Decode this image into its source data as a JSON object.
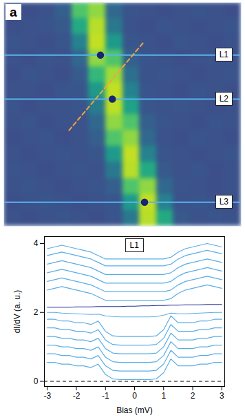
{
  "chart_data": [
    {
      "type": "heatmap",
      "title": "a",
      "xlim": [
        0,
        14
      ],
      "ylim": [
        0,
        14
      ],
      "tick_labels": false,
      "color": "viridis",
      "zlim": [
        -0.15,
        1.05
      ],
      "cells": [
        [
          0.15,
          0.14,
          0.15,
          0.21,
          0.72,
          0.85,
          0.25,
          0.16,
          0.15,
          0.14,
          0.15,
          0.16,
          0.15,
          0.14
        ],
        [
          0.14,
          0.15,
          0.16,
          0.18,
          0.58,
          0.92,
          0.33,
          0.15,
          0.14,
          0.16,
          0.15,
          0.14,
          0.15,
          0.16
        ],
        [
          0.16,
          0.15,
          0.14,
          0.16,
          0.38,
          0.94,
          0.5,
          0.17,
          0.15,
          0.14,
          0.16,
          0.15,
          0.14,
          0.15
        ],
        [
          0.15,
          0.14,
          0.16,
          0.15,
          0.25,
          0.85,
          0.72,
          0.21,
          0.16,
          0.15,
          0.14,
          0.15,
          0.16,
          0.15
        ],
        [
          0.14,
          0.16,
          0.15,
          0.14,
          0.19,
          0.65,
          0.88,
          0.28,
          0.15,
          0.16,
          0.15,
          0.14,
          0.15,
          0.16
        ],
        [
          0.15,
          0.15,
          0.14,
          0.16,
          0.17,
          0.5,
          0.94,
          0.38,
          0.16,
          0.15,
          0.14,
          0.16,
          0.15,
          0.14
        ],
        [
          0.16,
          0.14,
          0.15,
          0.15,
          0.16,
          0.35,
          0.93,
          0.54,
          0.17,
          0.15,
          0.16,
          0.15,
          0.14,
          0.15
        ],
        [
          0.15,
          0.16,
          0.14,
          0.15,
          0.15,
          0.25,
          0.85,
          0.72,
          0.21,
          0.16,
          0.15,
          0.14,
          0.16,
          0.15
        ],
        [
          0.14,
          0.15,
          0.16,
          0.14,
          0.15,
          0.21,
          0.72,
          0.85,
          0.25,
          0.15,
          0.14,
          0.16,
          0.15,
          0.14
        ],
        [
          0.15,
          0.14,
          0.15,
          0.16,
          0.15,
          0.17,
          0.5,
          0.94,
          0.38,
          0.16,
          0.15,
          0.14,
          0.15,
          0.16
        ],
        [
          0.16,
          0.15,
          0.14,
          0.15,
          0.16,
          0.15,
          0.33,
          0.92,
          0.58,
          0.18,
          0.15,
          0.16,
          0.14,
          0.15
        ],
        [
          0.15,
          0.16,
          0.15,
          0.14,
          0.15,
          0.16,
          0.21,
          0.72,
          0.85,
          0.25,
          0.16,
          0.15,
          0.14,
          0.15
        ],
        [
          0.14,
          0.15,
          0.16,
          0.15,
          0.14,
          0.15,
          0.17,
          0.5,
          0.94,
          0.38,
          0.15,
          0.16,
          0.15,
          0.14
        ],
        [
          0.15,
          0.14,
          0.15,
          0.16,
          0.15,
          0.14,
          0.16,
          0.33,
          0.92,
          0.58,
          0.18,
          0.15,
          0.16,
          0.15
        ]
      ],
      "lines": [
        {
          "label": "L1",
          "y": 3.3,
          "dot_x": 5.7
        },
        {
          "label": "L2",
          "y": 6.05,
          "dot_x": 6.4
        },
        {
          "label": "L3",
          "y": 12.5,
          "dot_x": 8.3
        }
      ],
      "dashed_line": {
        "x": [
          8.2,
          3.85
        ],
        "y": [
          2.55,
          8.0
        ]
      }
    },
    {
      "type": "line",
      "title": "L1",
      "xlabel": "Bias (mV)",
      "ylabel": "dI/dV (a. u.)",
      "x": [
        -3,
        -2.75,
        -2.5,
        -2.25,
        -2,
        -1.75,
        -1.5,
        -1.25,
        -1,
        -0.75,
        -0.5,
        -0.25,
        0,
        0.25,
        0.5,
        0.75,
        1,
        1.25,
        1.5,
        1.75,
        2,
        2.25,
        2.5,
        2.75,
        3
      ],
      "xlim": [
        -3.1,
        3.1
      ],
      "xticks": [
        -3,
        -2,
        -1,
        0,
        1,
        2,
        3
      ],
      "ylim": [
        -0.15,
        4.2
      ],
      "yticks": [
        0,
        2,
        4
      ],
      "baseline": 0,
      "series": [
        {
          "color": "#5aaee6",
          "values": [
            0.55,
            0.55,
            0.5,
            0.5,
            0.45,
            0.45,
            0.4,
            0.5,
            0.2,
            0.07,
            0.05,
            0.05,
            0.05,
            0.05,
            0.05,
            0.07,
            0.25,
            0.65,
            0.45,
            0.45,
            0.45,
            0.5,
            0.5,
            0.55,
            0.55
          ]
        },
        {
          "color": "#5aaee6",
          "values": [
            0.8,
            0.8,
            0.75,
            0.75,
            0.7,
            0.7,
            0.65,
            0.75,
            0.45,
            0.32,
            0.3,
            0.3,
            0.3,
            0.3,
            0.3,
            0.32,
            0.5,
            0.9,
            0.7,
            0.7,
            0.7,
            0.75,
            0.75,
            0.8,
            0.8
          ]
        },
        {
          "color": "#5aaee6",
          "values": [
            1.05,
            1.05,
            1,
            1,
            0.95,
            0.95,
            0.9,
            1,
            0.7,
            0.57,
            0.55,
            0.55,
            0.55,
            0.55,
            0.55,
            0.57,
            0.75,
            1.15,
            0.95,
            0.95,
            0.95,
            1,
            1,
            1.05,
            1.05
          ]
        },
        {
          "color": "#5aaee6",
          "values": [
            1.3,
            1.3,
            1.25,
            1.25,
            1.2,
            1.2,
            1.15,
            1.25,
            0.95,
            0.82,
            0.8,
            0.8,
            0.8,
            0.8,
            0.8,
            0.82,
            1,
            1.4,
            1.2,
            1.2,
            1.2,
            1.25,
            1.25,
            1.3,
            1.3
          ]
        },
        {
          "color": "#5aaee6",
          "values": [
            1.55,
            1.55,
            1.5,
            1.5,
            1.45,
            1.45,
            1.4,
            1.5,
            1.2,
            1.07,
            1.05,
            1.05,
            1.05,
            1.05,
            1.05,
            1.07,
            1.25,
            1.65,
            1.45,
            1.45,
            1.45,
            1.5,
            1.5,
            1.55,
            1.55
          ]
        },
        {
          "color": "#5aaee6",
          "values": [
            1.8,
            1.8,
            1.75,
            1.75,
            1.7,
            1.7,
            1.65,
            1.75,
            1.45,
            1.32,
            1.3,
            1.3,
            1.3,
            1.3,
            1.3,
            1.32,
            1.5,
            1.9,
            1.7,
            1.7,
            1.7,
            1.75,
            1.75,
            1.8,
            1.8
          ]
        },
        {
          "color": "#5aaee6",
          "values": [
            2.0,
            2.0,
            1.98,
            1.97,
            1.96,
            1.95,
            1.94,
            1.95,
            1.9,
            1.88,
            1.87,
            1.87,
            1.87,
            1.87,
            1.87,
            1.88,
            1.92,
            1.98,
            1.96,
            1.96,
            1.97,
            1.98,
            1.99,
            2.0,
            2.0
          ]
        },
        {
          "color": "#23308f",
          "values": [
            2.15,
            2.15,
            2.15,
            2.15,
            2.16,
            2.16,
            2.16,
            2.17,
            2.17,
            2.17,
            2.17,
            2.18,
            2.18,
            2.19,
            2.19,
            2.2,
            2.2,
            2.21,
            2.21,
            2.22,
            2.22,
            2.22,
            2.23,
            2.23,
            2.23
          ]
        },
        {
          "color": "#5aaee6",
          "values": [
            2.65,
            2.7,
            2.75,
            2.7,
            2.65,
            2.6,
            2.55,
            2.45,
            2.35,
            2.35,
            2.35,
            2.35,
            2.35,
            2.35,
            2.35,
            2.35,
            2.35,
            2.4,
            2.55,
            2.65,
            2.7,
            2.75,
            2.8,
            2.75,
            2.7
          ]
        },
        {
          "color": "#5aaee6",
          "values": [
            2.9,
            2.95,
            3,
            2.95,
            2.9,
            2.85,
            2.8,
            2.7,
            2.6,
            2.6,
            2.6,
            2.6,
            2.6,
            2.6,
            2.6,
            2.6,
            2.6,
            2.65,
            2.8,
            2.9,
            2.95,
            3,
            3.05,
            3,
            2.95
          ]
        },
        {
          "color": "#5aaee6",
          "values": [
            3.15,
            3.2,
            3.25,
            3.2,
            3.15,
            3.1,
            3.05,
            2.95,
            2.85,
            2.85,
            2.85,
            2.85,
            2.85,
            2.85,
            2.85,
            2.85,
            2.85,
            2.9,
            3.05,
            3.15,
            3.2,
            3.25,
            3.3,
            3.25,
            3.2
          ]
        },
        {
          "color": "#5aaee6",
          "values": [
            3.4,
            3.45,
            3.5,
            3.45,
            3.4,
            3.35,
            3.3,
            3.2,
            3.1,
            3.1,
            3.1,
            3.1,
            3.1,
            3.1,
            3.1,
            3.1,
            3.1,
            3.15,
            3.3,
            3.4,
            3.45,
            3.5,
            3.55,
            3.5,
            3.45
          ]
        },
        {
          "color": "#5aaee6",
          "values": [
            3.65,
            3.7,
            3.75,
            3.7,
            3.65,
            3.6,
            3.55,
            3.45,
            3.35,
            3.35,
            3.35,
            3.35,
            3.35,
            3.35,
            3.35,
            3.35,
            3.35,
            3.4,
            3.55,
            3.65,
            3.7,
            3.75,
            3.8,
            3.75,
            3.7
          ]
        },
        {
          "color": "#5aaee6",
          "values": [
            3.85,
            3.9,
            3.95,
            3.9,
            3.85,
            3.8,
            3.75,
            3.65,
            3.55,
            3.55,
            3.55,
            3.55,
            3.55,
            3.55,
            3.55,
            3.55,
            3.55,
            3.6,
            3.75,
            3.85,
            3.9,
            3.95,
            4.0,
            3.95,
            3.9
          ]
        }
      ]
    }
  ]
}
